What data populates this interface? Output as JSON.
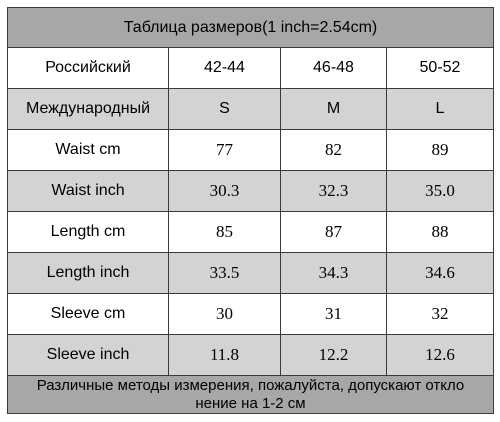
{
  "title": "Таблица размеров(1 inch=2.54cm)",
  "table": {
    "header": [
      "Российский",
      "42-44",
      "46-48",
      "50-52"
    ],
    "rows": [
      [
        "Международный",
        "S",
        "M",
        "L"
      ],
      [
        "Waist cm",
        "77",
        "82",
        "89"
      ],
      [
        "Waist inch",
        "30.3",
        "32.3",
        "35.0"
      ],
      [
        "Length cm",
        "85",
        "87",
        "88"
      ],
      [
        "Length inch",
        "33.5",
        "34.3",
        "34.6"
      ],
      [
        "Sleeve cm",
        "30",
        "31",
        "32"
      ],
      [
        "Sleeve inch",
        "11.8",
        "12.2",
        "12.6"
      ]
    ]
  },
  "footer": [
    "Различные методы измерения, пожалуйста, допускают откло",
    "нение на 1-2 см"
  ]
}
